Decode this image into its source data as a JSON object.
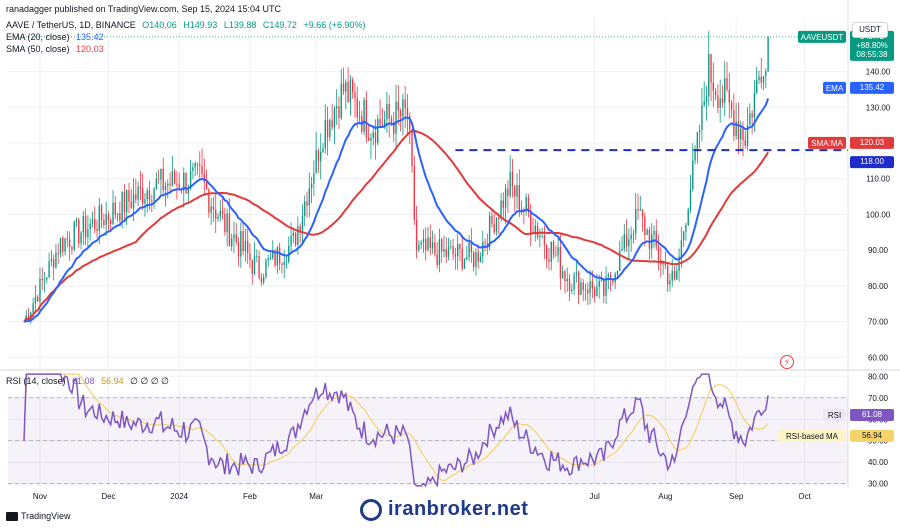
{
  "header": {
    "publisher": "ranadagger published on TradingView.com, Sep 15, 2024 15:04 UTC",
    "symbol_line": {
      "symbol": "AAVE / TetherUS, 1D, BINANCE",
      "open": "O140.06",
      "high": "H149.93",
      "low": "L139.88",
      "close": "C149.72",
      "change": "+9.66 (+6.90%)"
    },
    "ema_line": {
      "label": "EMA (20, close)",
      "value": "135.42"
    },
    "sma_line": {
      "label": "SMA (50, close)",
      "value": "120.03"
    },
    "rsi_line": {
      "label": "RSI (14, close)",
      "value1": "61.08",
      "value2": "56.94",
      "extra": "∅ ∅ ∅ ∅"
    }
  },
  "currency_button": "USDT",
  "price_tags": {
    "symbol": "AAVEUSDT",
    "price": "149.72",
    "change": "+88.80%",
    "countdown": "08:55:38",
    "ema_label": "EMA",
    "ema_value": "135.42",
    "sma_label": "SMA:MA",
    "sma_value": "120.03",
    "level_value": "118.00",
    "rsi_label": "RSI",
    "rsi_value": "61.08",
    "rsima_label": "RSI-based MA",
    "rsima_value": "56.94"
  },
  "footer": {
    "brand": "TradingView",
    "watermark": "iranbroker.net"
  },
  "colors": {
    "up": "#089981",
    "down": "#f23645",
    "ema": "#2962ff",
    "sma": "#e03b3b",
    "rsi": "#7e57c2",
    "rsi_ma": "#f5d36a",
    "level": "#1e2cc9",
    "grid": "#eef0f3"
  },
  "chart_data": [
    {
      "type": "candlestick",
      "title": "AAVE / TetherUS, 1D, BINANCE",
      "x_ticks": [
        "Nov",
        "Dec",
        "2024",
        "Feb",
        "Mar",
        "Jul",
        "Aug",
        "Sep",
        "Oct"
      ],
      "y_ticks": [
        60,
        70,
        80,
        90,
        100,
        110,
        120,
        130,
        140
      ],
      "ylim": [
        57,
        155
      ],
      "horizontal_level": 118.0,
      "key_points": [
        {
          "date": "2023-10-25",
          "close": 70
        },
        {
          "date": "2023-11-10",
          "close": 92
        },
        {
          "date": "2023-12-01",
          "close": 100
        },
        {
          "date": "2023-12-20",
          "close": 108
        },
        {
          "date": "2024-01-10",
          "close": 110
        },
        {
          "date": "2024-01-20",
          "close": 98
        },
        {
          "date": "2024-02-05",
          "close": 84
        },
        {
          "date": "2024-02-20",
          "close": 92
        },
        {
          "date": "2024-03-05",
          "close": 125
        },
        {
          "date": "2024-03-13",
          "close": 135
        },
        {
          "date": "2024-03-25",
          "close": 125
        },
        {
          "date": "2024-04-10",
          "close": 128
        },
        {
          "date": "2024-04-14",
          "close": 90
        },
        {
          "date": "2024-05-10",
          "close": 88
        },
        {
          "date": "2024-05-25",
          "close": 108
        },
        {
          "date": "2024-06-20",
          "close": 82
        },
        {
          "date": "2024-07-05",
          "close": 78
        },
        {
          "date": "2024-07-20",
          "close": 100
        },
        {
          "date": "2024-08-05",
          "close": 80
        },
        {
          "date": "2024-08-20",
          "close": 140
        },
        {
          "date": "2024-09-05",
          "close": 122
        },
        {
          "date": "2024-09-15",
          "close": 149.72
        }
      ],
      "series": [
        {
          "name": "EMA (20, close)",
          "last": 135.42
        },
        {
          "name": "SMA (50, close)",
          "last": 120.03
        }
      ],
      "last": {
        "open": 140.06,
        "high": 149.93,
        "low": 139.88,
        "close": 149.72
      }
    },
    {
      "type": "line",
      "title": "RSI (14, close)",
      "y_ticks": [
        30,
        40,
        50,
        60,
        70,
        80
      ],
      "ylim": [
        28,
        82
      ],
      "band": [
        30,
        70
      ],
      "midline": 50,
      "series": [
        {
          "name": "RSI",
          "last": 61.08
        },
        {
          "name": "RSI-based MA",
          "last": 56.94
        }
      ]
    }
  ]
}
